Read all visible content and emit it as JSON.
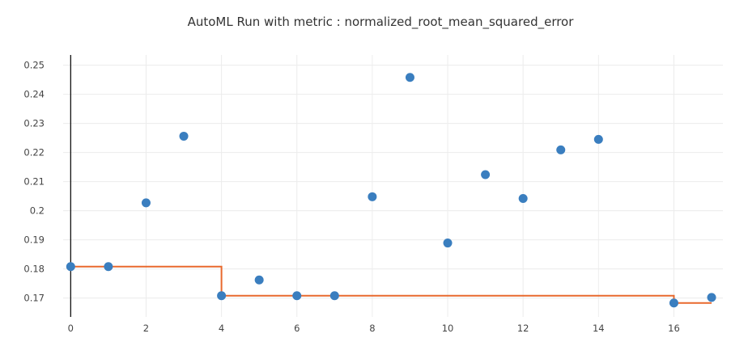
{
  "chart_data": {
    "type": "scatter",
    "title": "AutoML Run with metric : normalized_root_mean_squared_error",
    "xlabel": "",
    "ylabel": "",
    "xlim": [
      -0.2,
      17.3
    ],
    "ylim": [
      0.1635,
      0.2535
    ],
    "grid": true,
    "x_ticks": [
      0,
      2,
      4,
      6,
      8,
      10,
      12,
      14,
      16
    ],
    "x_tick_labels": [
      "0",
      "2",
      "4",
      "6",
      "8",
      "10",
      "12",
      "14",
      "16"
    ],
    "y_ticks": [
      0.17,
      0.18,
      0.19,
      0.2,
      0.21,
      0.22,
      0.23,
      0.24,
      0.25
    ],
    "y_tick_labels": [
      "0.17",
      "0.18",
      "0.19",
      "0.2",
      "0.21",
      "0.22",
      "0.23",
      "0.24",
      "0.25"
    ],
    "series": [
      {
        "kind": "scatter",
        "color": "#3a7ebf",
        "x": [
          0,
          1,
          2,
          3,
          4,
          5,
          6,
          7,
          8,
          9,
          10,
          11,
          12,
          13,
          14,
          16,
          17
        ],
        "values": [
          0.1808,
          0.1808,
          0.2027,
          0.2256,
          0.1708,
          0.1762,
          0.1708,
          0.1708,
          0.2048,
          0.2458,
          0.1889,
          0.2124,
          0.2042,
          0.2209,
          0.2245,
          0.1683,
          0.1702
        ]
      },
      {
        "kind": "step",
        "color": "#e8692d",
        "x": [
          0,
          4,
          16,
          17
        ],
        "values": [
          0.1808,
          0.1708,
          0.1683,
          0.1683
        ]
      }
    ]
  }
}
